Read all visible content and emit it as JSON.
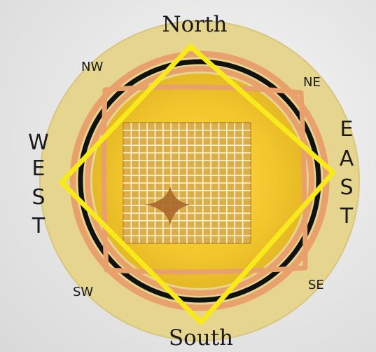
{
  "labels": {
    "north": "North",
    "south": "South",
    "west_letters": [
      "W",
      "E",
      "S",
      "T"
    ],
    "east_letters": [
      "E",
      "A",
      "S",
      "T"
    ],
    "nw": "NW",
    "ne": "NE",
    "sw": "SW",
    "se": "SE"
  },
  "colors": {
    "disc": "#e6d58f",
    "inner_disc": "#f2c62c",
    "outer_ring": "#e9a16b",
    "black_ring": "#111111",
    "yellow_square": "#f8ea1a",
    "orange_square": "#e9a16b",
    "grid_fill": "#dcae49",
    "grid_lines": "#fff5d8",
    "star": "#a8672a"
  },
  "grid": {
    "divisions": 16
  }
}
